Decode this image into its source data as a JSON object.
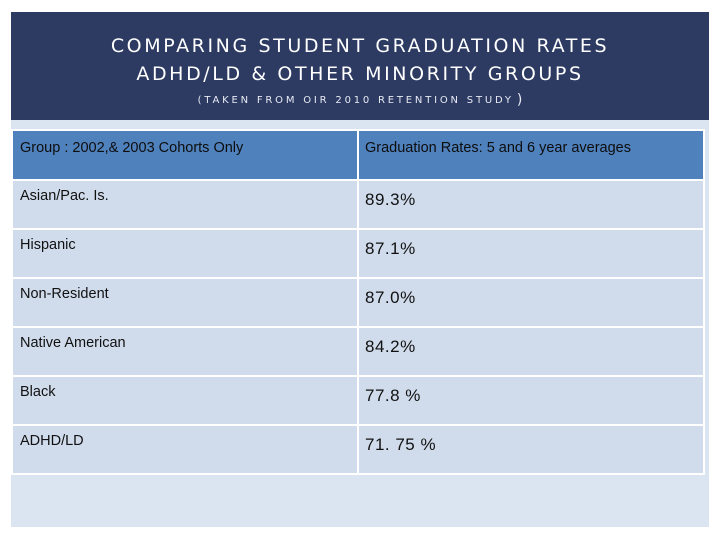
{
  "title": {
    "line1": "COMPARING STUDENT GRADUATION RATES",
    "line2": "ADHD/LD & OTHER MINORITY GROUPS",
    "subtitle": "(TAKEN FROM OIR 2010 RETENTION STUDY",
    "subtitle_close": ")"
  },
  "table": {
    "headers": [
      "Group :  2002,& 2003 Cohorts Only",
      "Graduation Rates:  5 and 6 year  averages"
    ],
    "rows": [
      {
        "group": "Asian/Pac. Is.",
        "rate": "89.3%"
      },
      {
        "group": "Hispanic",
        "rate": "87.1%"
      },
      {
        "group": "Non-Resident",
        "rate": "87.0%"
      },
      {
        "group": "Native American",
        "rate": "84.2%"
      },
      {
        "group": "Black",
        "rate": "77.8 %"
      },
      {
        "group": "ADHD/LD",
        "rate": "71. 75  %"
      }
    ]
  },
  "colors": {
    "title_band": "#2d3b63",
    "header_fill": "#4f81bd",
    "row_fill": "#d0dcec",
    "slide_fill": "#dbe5f1"
  }
}
